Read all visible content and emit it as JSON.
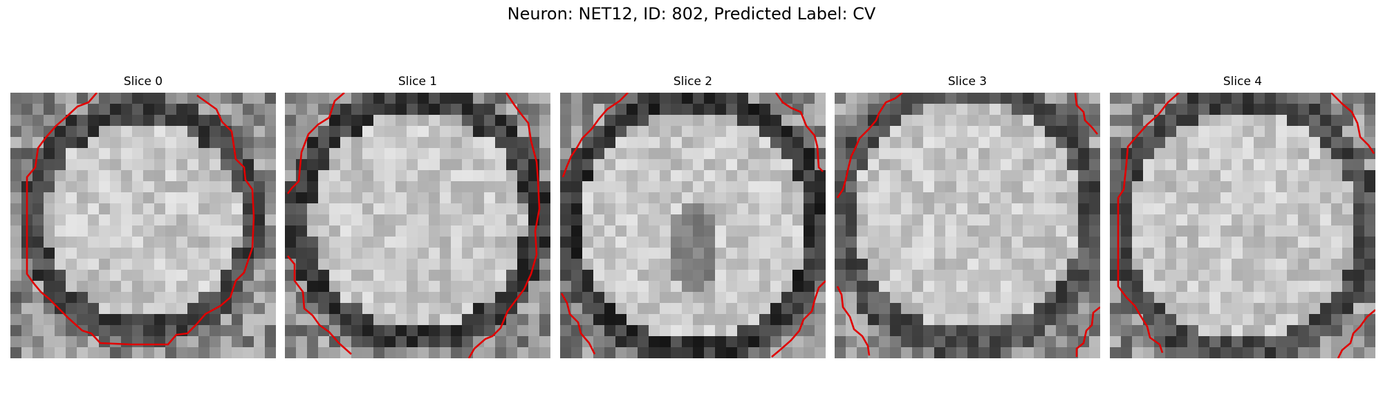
{
  "figure": {
    "title": "Neuron: NET12, ID: 802, Predicted Label: CV"
  },
  "panels": [
    {
      "title": "Slice 0",
      "image": "grayscale microscopy patch, bright cell body with dark rim",
      "contour_color": "#e00000"
    },
    {
      "title": "Slice 1",
      "image": "grayscale microscopy patch, bright cell body with dark rim",
      "contour_color": "#e00000"
    },
    {
      "title": "Slice 2",
      "image": "grayscale microscopy patch, bright cell body with darker inner region",
      "contour_color": "#e00000"
    },
    {
      "title": "Slice 3",
      "image": "grayscale microscopy patch, bright cell body",
      "contour_color": "#e00000"
    },
    {
      "title": "Slice 4",
      "image": "grayscale microscopy patch, speckled bright cell body",
      "contour_color": "#e00000"
    }
  ]
}
